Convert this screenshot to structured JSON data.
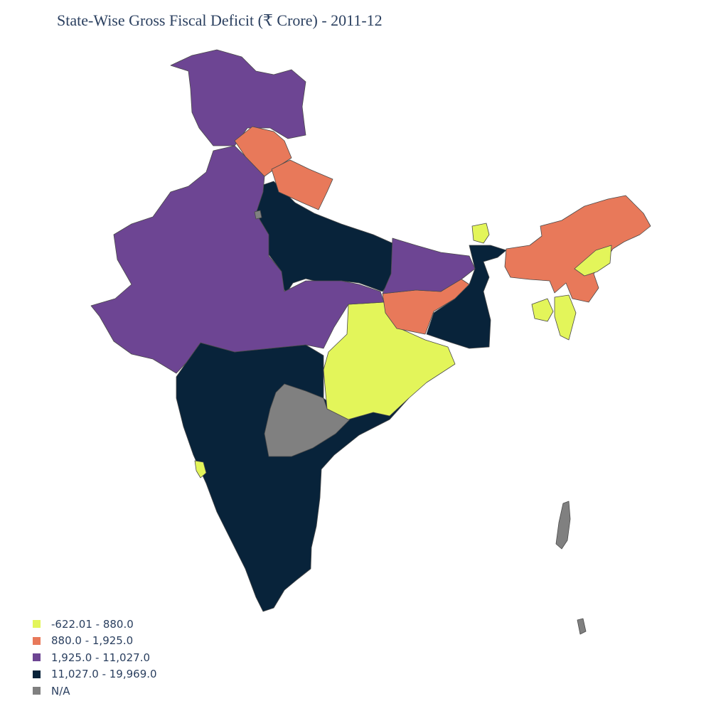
{
  "title": "State-Wise Gross Fiscal Deficit (₹ Crore) - 2011-12",
  "legend": [
    {
      "label": "-622.01 - 880.0",
      "color": "#e3f55a"
    },
    {
      "label": "880.0 - 1,925.0",
      "color": "#e8795a"
    },
    {
      "label": "1,925.0 - 11,027.0",
      "color": "#6d4593"
    },
    {
      "label": "11,027.0 - 19,969.0",
      "color": "#08233a"
    },
    {
      "label": "N/A",
      "color": "#808080"
    }
  ],
  "chart_data": {
    "type": "choropleth",
    "title": "State-Wise Gross Fiscal Deficit (₹ Crore) - 2011-12",
    "classes": [
      "-622.01 - 880.0",
      "880.0 - 1,925.0",
      "1,925.0 - 11,027.0",
      "11,027.0 - 19,969.0",
      "N/A"
    ],
    "legend_position": "bottom-left"
  }
}
